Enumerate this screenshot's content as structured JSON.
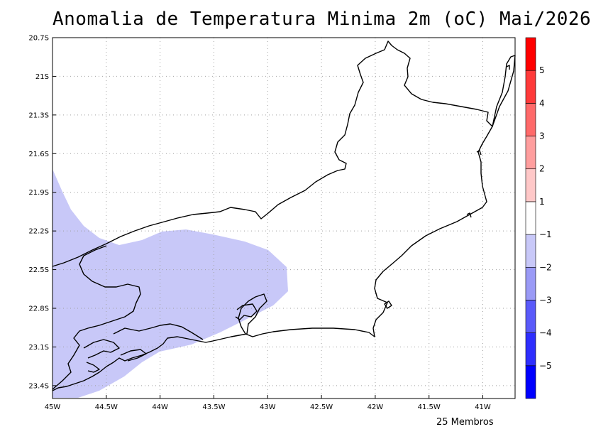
{
  "title": "Anomalia de Temperatura Minima 2m (oC) Mai/2026",
  "footer": "25 Membros",
  "map": {
    "lon_range": [
      -45,
      -40.7
    ],
    "lat_range": [
      -23.5,
      -20.7
    ],
    "x_ticks": [
      {
        "value": -45,
        "label": "45W"
      },
      {
        "value": -44.5,
        "label": "44.5W"
      },
      {
        "value": -44,
        "label": "44W"
      },
      {
        "value": -43.5,
        "label": "43.5W"
      },
      {
        "value": -43,
        "label": "43W"
      },
      {
        "value": -42.5,
        "label": "42.5W"
      },
      {
        "value": -42,
        "label": "42W"
      },
      {
        "value": -41.5,
        "label": "41.5W"
      },
      {
        "value": -41,
        "label": "41W"
      }
    ],
    "y_ticks": [
      {
        "value": -20.7,
        "label": "20.7S"
      },
      {
        "value": -21.0,
        "label": "21S"
      },
      {
        "value": -21.3,
        "label": "21.3S"
      },
      {
        "value": -21.6,
        "label": "21.6S"
      },
      {
        "value": -21.9,
        "label": "21.9S"
      },
      {
        "value": -22.2,
        "label": "22.2S"
      },
      {
        "value": -22.5,
        "label": "22.5S"
      },
      {
        "value": -22.8,
        "label": "22.8S"
      },
      {
        "value": -23.1,
        "label": "23.1S"
      },
      {
        "value": -23.4,
        "label": "23.4S"
      }
    ],
    "grid": true,
    "anomaly_region": {
      "range": [
        -2,
        -1
      ],
      "color": "#c8c8f8"
    }
  },
  "colorbar": {
    "bins": [
      {
        "color": "#0000ff"
      },
      {
        "color": "#2e2efe"
      },
      {
        "color": "#5a5afa"
      },
      {
        "color": "#9a9af6"
      },
      {
        "color": "#c8c8f8"
      },
      {
        "color": "#ffffff"
      },
      {
        "color": "#ffc8c8"
      },
      {
        "color": "#ff9e9e"
      },
      {
        "color": "#ff6a6a"
      },
      {
        "color": "#ff3a3a"
      },
      {
        "color": "#ff0000"
      }
    ],
    "labels": [
      {
        "value": -5,
        "label": "−5"
      },
      {
        "value": -4,
        "label": "−4"
      },
      {
        "value": -3,
        "label": "−3"
      },
      {
        "value": -2,
        "label": "−2"
      },
      {
        "value": -1,
        "label": "−1"
      },
      {
        "value": 1,
        "label": "1"
      },
      {
        "value": 2,
        "label": "2"
      },
      {
        "value": 3,
        "label": "3"
      },
      {
        "value": 4,
        "label": "4"
      },
      {
        "value": 5,
        "label": "5"
      }
    ]
  }
}
